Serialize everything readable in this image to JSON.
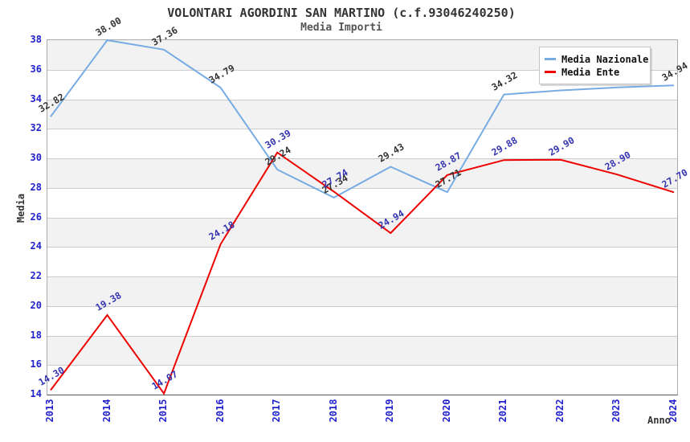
{
  "title": "VOLONTARI AGORDINI SAN MARTINO (c.f.93046240250)",
  "subtitle": "Media Importi",
  "chart_data": {
    "type": "line",
    "x": [
      "2013",
      "2014",
      "2015",
      "2016",
      "2017",
      "2018",
      "2019",
      "2020",
      "2021",
      "2022",
      "2023",
      "2024"
    ],
    "xlabel": "Anno",
    "ylabel": "Media",
    "ylim": [
      14,
      38
    ],
    "ytick_step": 2,
    "y_ticks": [
      14,
      16,
      18,
      20,
      22,
      24,
      26,
      28,
      30,
      32,
      34,
      36,
      38
    ],
    "grid": "horizontal gridlines with alternating gray bands",
    "legend_position": "top-right",
    "series": [
      {
        "name": "Media Nazionale",
        "color": "#77ace3",
        "label_color": "#333333",
        "values": [
          32.82,
          38.0,
          37.36,
          34.79,
          29.24,
          27.34,
          29.43,
          27.71,
          34.32,
          34.6,
          34.8,
          34.94
        ],
        "label_visible": [
          true,
          true,
          true,
          true,
          true,
          true,
          true,
          true,
          true,
          false,
          false,
          true
        ]
      },
      {
        "name": "Media Ente",
        "color": "#ee0000",
        "label_color": "#3434b0",
        "values": [
          14.3,
          19.38,
          14.07,
          24.18,
          30.39,
          27.74,
          24.94,
          28.87,
          29.88,
          29.9,
          28.9,
          27.7
        ],
        "label_visible": [
          true,
          true,
          true,
          true,
          true,
          true,
          true,
          true,
          true,
          true,
          true,
          true
        ]
      }
    ]
  },
  "colors": {
    "tick_label": "#2222cc",
    "band_gray": "#f2f2f2",
    "band_white": "#ffffff",
    "gridline": "#cccccc",
    "plot_border": "#ababab",
    "title": "#333333",
    "subtitle": "#565656"
  }
}
